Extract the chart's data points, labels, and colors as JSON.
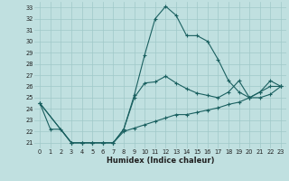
{
  "xlabel": "Humidex (Indice chaleur)",
  "bg_color": "#c0e0e0",
  "grid_color": "#a0c8c8",
  "line_color": "#1a6060",
  "xlim": [
    -0.5,
    23.5
  ],
  "ylim": [
    20.5,
    33.5
  ],
  "xticks": [
    0,
    1,
    2,
    3,
    4,
    5,
    6,
    7,
    8,
    9,
    10,
    11,
    12,
    13,
    14,
    15,
    16,
    17,
    18,
    19,
    20,
    21,
    22,
    23
  ],
  "yticks": [
    21,
    22,
    23,
    24,
    25,
    26,
    27,
    28,
    29,
    30,
    31,
    32,
    33
  ],
  "curve1_x": [
    0,
    1,
    2,
    3,
    4,
    5,
    6,
    7,
    8,
    9,
    10,
    11,
    12,
    13,
    14,
    15,
    16,
    17,
    18,
    19,
    20,
    21,
    22,
    23
  ],
  "curve1_y": [
    24.5,
    22.2,
    22.2,
    21.0,
    21.0,
    21.0,
    21.0,
    21.0,
    22.2,
    25.2,
    28.8,
    32.0,
    33.1,
    32.3,
    30.5,
    30.5,
    30.0,
    28.4,
    26.5,
    25.5,
    25.0,
    25.5,
    26.0,
    26.0
  ],
  "curve2_x": [
    0,
    3,
    4,
    5,
    6,
    7,
    8,
    9,
    10,
    11,
    12,
    13,
    14,
    15,
    16,
    17,
    18,
    19,
    20,
    21,
    22,
    23
  ],
  "curve2_y": [
    24.5,
    21.0,
    21.0,
    21.0,
    21.0,
    21.0,
    22.2,
    25.0,
    26.3,
    26.4,
    26.9,
    26.3,
    25.8,
    25.4,
    25.2,
    25.0,
    25.5,
    26.5,
    25.0,
    25.5,
    26.5,
    26.0
  ],
  "curve3_x": [
    0,
    3,
    4,
    5,
    6,
    7,
    8,
    9,
    10,
    11,
    12,
    13,
    14,
    15,
    16,
    17,
    18,
    19,
    20,
    21,
    22,
    23
  ],
  "curve3_y": [
    24.5,
    21.0,
    21.0,
    21.0,
    21.0,
    21.0,
    22.0,
    22.3,
    22.6,
    22.9,
    23.2,
    23.5,
    23.5,
    23.7,
    23.9,
    24.1,
    24.4,
    24.6,
    25.0,
    25.0,
    25.3,
    26.0
  ]
}
